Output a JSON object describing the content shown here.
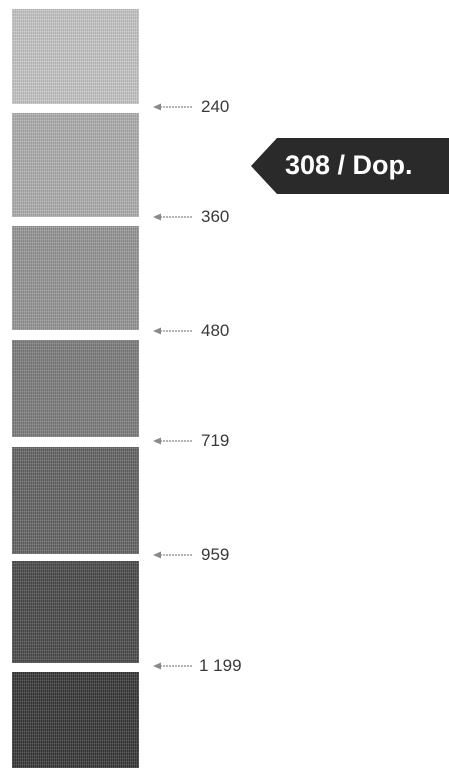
{
  "swatches": [
    {
      "color": "#c6c6c6"
    },
    {
      "color": "#afafaf"
    },
    {
      "color": "#979797"
    },
    {
      "color": "#7e7e7e"
    },
    {
      "color": "#666666"
    },
    {
      "color": "#4d4d4d"
    },
    {
      "color": "#3a3a3a"
    }
  ],
  "markers": [
    {
      "label": "240"
    },
    {
      "label": "360"
    },
    {
      "label": "480"
    },
    {
      "label": "719"
    },
    {
      "label": "959"
    },
    {
      "label": "1 199"
    }
  ],
  "badge": {
    "text": "308 / Dop.",
    "color": "#2a2a2a"
  },
  "colors": {
    "text": "#3a3a3a",
    "arrow": "#9a9a9a"
  }
}
